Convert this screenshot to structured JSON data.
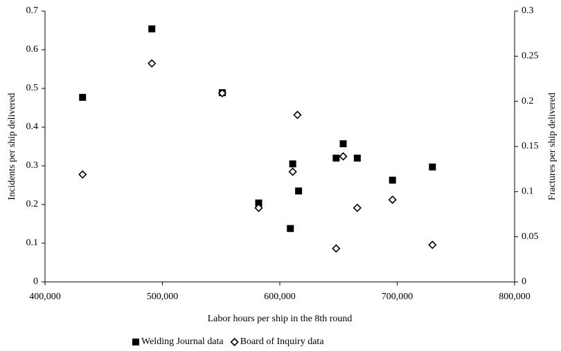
{
  "chart_data": {
    "type": "scatter",
    "xlabel": "Labor hours per ship in the 8th round",
    "ylabel": "Incidents per ship delivered",
    "y2label": "Fractures per ship delivered",
    "xlim": [
      400000,
      800000
    ],
    "xticks": [
      {
        "value": 400000,
        "label": "400,000"
      },
      {
        "value": 500000,
        "label": "500,000"
      },
      {
        "value": 600000,
        "label": "600,000"
      },
      {
        "value": 700000,
        "label": "700,000"
      },
      {
        "value": 800000,
        "label": "800,000"
      }
    ],
    "ylim": [
      0,
      0.7
    ],
    "yticks": [
      0,
      0.1,
      0.2,
      0.3,
      0.4,
      0.5,
      0.6,
      0.7
    ],
    "y2lim": [
      0,
      0.3
    ],
    "y2ticks": [
      0,
      0.05,
      0.1,
      0.15,
      0.2,
      0.25,
      0.3
    ],
    "series": [
      {
        "name": "Welding Journal data",
        "color": "#000000",
        "marker": "square",
        "x": [
          432000,
          491000,
          551000,
          582000,
          609000,
          611000,
          616000,
          648000,
          654000,
          666000,
          696000,
          730000
        ],
        "values": [
          0.477,
          0.654,
          0.489,
          0.204,
          0.138,
          0.305,
          0.235,
          0.32,
          0.357,
          0.32,
          0.263,
          0.297
        ]
      },
      {
        "name": "Board of Inquiry data",
        "color": "#000000",
        "marker": "diamond",
        "axis": "y2",
        "x": [
          432000,
          491000,
          551000,
          582000,
          611000,
          615000,
          648000,
          654000,
          666000,
          696000,
          730000
        ],
        "values": [
          0.119,
          0.242,
          0.209,
          0.082,
          0.122,
          0.185,
          0.037,
          0.139,
          0.082,
          0.091,
          0.041
        ]
      }
    ]
  }
}
